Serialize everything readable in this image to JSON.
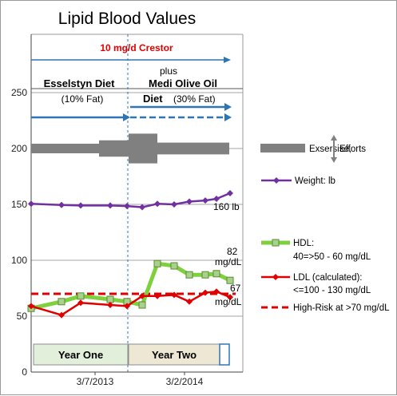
{
  "chart_data": {
    "type": "line",
    "title": "Lipid Blood Values",
    "ylim": [
      0,
      250
    ],
    "yticks": [
      0,
      50,
      100,
      150,
      200,
      250
    ],
    "xticks": [
      "3/7/2013",
      "3/2/2014"
    ],
    "grid": true,
    "colors": {
      "weight": "#7030a0",
      "hdl": "#7fd03e",
      "ldl": "#e00000",
      "risk": "#e00000",
      "effort": "#808080",
      "arrow": "#2e75b6",
      "year_one": "#e2efda",
      "year_two": "#ede7d4"
    },
    "series": [
      {
        "name": "Weight:  lb",
        "values": [
          150.5,
          149.5,
          149,
          149,
          148.5,
          147.5,
          150.5,
          150,
          152.5,
          153.5,
          155,
          160
        ]
      },
      {
        "name": "HDL:",
        "values": [
          57,
          63,
          68,
          65,
          63,
          60,
          97,
          95,
          87,
          87,
          88,
          82
        ]
      },
      {
        "name": "LDL (calculated):",
        "values": [
          59,
          51,
          62,
          60,
          59,
          68,
          68,
          69,
          63,
          71,
          72,
          67
        ]
      }
    ],
    "risk_level": 70,
    "effort_band": {
      "values": [
        200,
        200,
        200,
        201,
        209,
        201,
        201
      ]
    },
    "legend": {
      "effort": "Exsersise,",
      "effort2": "Efforts",
      "weight": "Weight:  lb",
      "hdl": "HDL:",
      "hdl_range": "40=>50 - 60 mg/dL",
      "ldl": "LDL (calculated):",
      "ldl_range": "<=100 - 130 mg/dL",
      "risk": "High-Risk at >70 mg/dL"
    },
    "annotations": {
      "crestor": "10 mg/d Crestor",
      "esselstyn": "Esselstyn Diet",
      "esselstyn_fat": "(10% Fat)",
      "plus": "plus",
      "medi1": "Medi Olive Oil",
      "medi2": "Diet",
      "medi_fat": "(30% Fat)",
      "weight_end": "160 lb",
      "hdl_end_value": "82",
      "hdl_end_unit": "mg/dL",
      "ldl_end_value": "67",
      "ldl_end_unit": "mg/dL",
      "year_one": "Year One",
      "year_two": "Year Two"
    }
  }
}
